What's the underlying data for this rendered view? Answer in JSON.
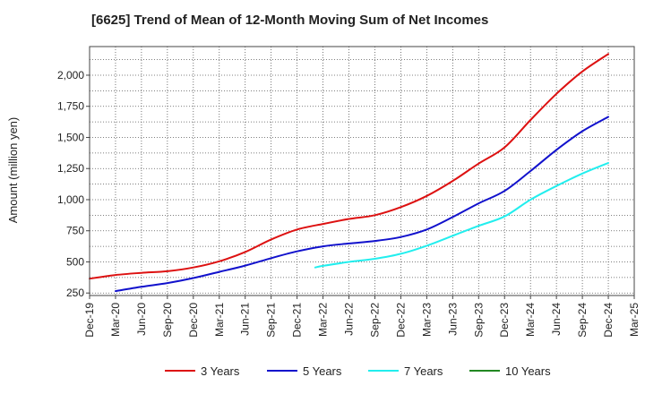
{
  "chart_data": {
    "type": "line",
    "title": "[6625]  Trend of Mean of 12-Month Moving Sum of Net Incomes",
    "ylabel": "Amount (million yen)",
    "xlabel": "",
    "ylim": [
      230,
      2230
    ],
    "yticks": [
      250,
      500,
      750,
      1000,
      1250,
      1500,
      1750,
      2000
    ],
    "ytick_labels": [
      "250",
      "500",
      "750",
      "1,000",
      "1,250",
      "1,500",
      "1,750",
      "2,000"
    ],
    "x_categories": [
      "Dec-19",
      "Mar-20",
      "Jun-20",
      "Sep-20",
      "Dec-20",
      "Mar-21",
      "Jun-21",
      "Sep-21",
      "Dec-21",
      "Mar-22",
      "Jun-22",
      "Sep-22",
      "Dec-22",
      "Mar-23",
      "Jun-23",
      "Sep-23",
      "Dec-23",
      "Mar-24",
      "Jun-24",
      "Sep-24",
      "Dec-24",
      "Mar-25"
    ],
    "grid": true,
    "legend_position": "bottom",
    "series": [
      {
        "name": "3 Years",
        "color": "#dd1111",
        "points": [
          [
            0,
            365
          ],
          [
            1,
            395
          ],
          [
            2,
            412
          ],
          [
            3,
            425
          ],
          [
            4,
            455
          ],
          [
            5,
            505
          ],
          [
            6,
            580
          ],
          [
            7,
            680
          ],
          [
            8,
            760
          ],
          [
            9,
            805
          ],
          [
            10,
            845
          ],
          [
            11,
            875
          ],
          [
            12,
            940
          ],
          [
            13,
            1030
          ],
          [
            14,
            1150
          ],
          [
            15,
            1290
          ],
          [
            16,
            1420
          ],
          [
            17,
            1640
          ],
          [
            18,
            1850
          ],
          [
            19,
            2030
          ],
          [
            20,
            2170
          ]
        ]
      },
      {
        "name": "5 Years",
        "color": "#1111cc",
        "points": [
          [
            1,
            265
          ],
          [
            2,
            300
          ],
          [
            3,
            330
          ],
          [
            4,
            370
          ],
          [
            5,
            420
          ],
          [
            6,
            470
          ],
          [
            7,
            530
          ],
          [
            8,
            585
          ],
          [
            9,
            625
          ],
          [
            10,
            648
          ],
          [
            11,
            668
          ],
          [
            12,
            700
          ],
          [
            13,
            760
          ],
          [
            14,
            860
          ],
          [
            15,
            970
          ],
          [
            16,
            1070
          ],
          [
            17,
            1230
          ],
          [
            18,
            1400
          ],
          [
            19,
            1550
          ],
          [
            20,
            1665
          ]
        ]
      },
      {
        "name": "7 Years",
        "color": "#22eeee",
        "points": [
          [
            8.7,
            455
          ],
          [
            9,
            468
          ],
          [
            10,
            500
          ],
          [
            11,
            525
          ],
          [
            12,
            565
          ],
          [
            13,
            630
          ],
          [
            14,
            710
          ],
          [
            15,
            790
          ],
          [
            16,
            865
          ],
          [
            17,
            1000
          ],
          [
            18,
            1110
          ],
          [
            19,
            1210
          ],
          [
            20,
            1295
          ]
        ]
      },
      {
        "name": "10 Years",
        "color": "#228822",
        "points": []
      }
    ]
  }
}
